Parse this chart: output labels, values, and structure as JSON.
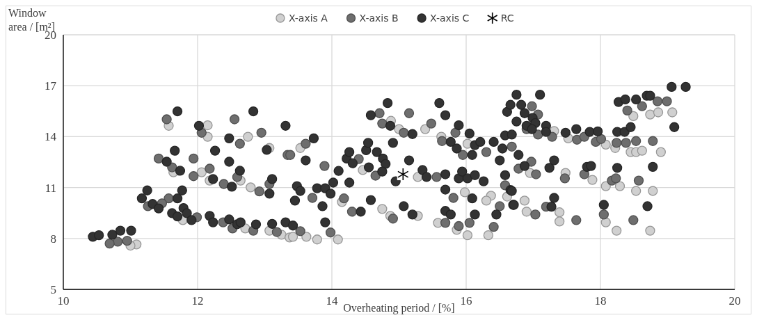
{
  "chart_data": {
    "type": "scatter",
    "xlabel": "Overheating period / [%]",
    "ylabel": "Window area / [m²]",
    "xlim": [
      10,
      20
    ],
    "xticks": [
      10,
      12,
      14,
      16,
      18,
      20
    ],
    "ylim": [
      5,
      20
    ],
    "yticks": [
      5,
      8,
      11,
      14,
      17,
      20
    ],
    "grid": true,
    "legend": "top",
    "marker": "circle",
    "series": [
      {
        "name": "X-axis A",
        "color": "#d0d0d0",
        "x": [
          11.57,
          12.15,
          12.15,
          11.64,
          12.06,
          12.18,
          12.75,
          12.64,
          12.79,
          13.07,
          11.09,
          11.0,
          12.71,
          13.07,
          13.25,
          13.37,
          11.78,
          13.53,
          14.09,
          13.78,
          13.62,
          13.42,
          14.75,
          14.87,
          15.28,
          14.88,
          15.0,
          15.39,
          15.63,
          14.46,
          15.28,
          15.58,
          15.86,
          16.02,
          16.33,
          16.37,
          16.3,
          16.61,
          14.15,
          16.02,
          15.98,
          17.52,
          18.08,
          18.22,
          18.45,
          18.53,
          18.62,
          18.9,
          18.74,
          18.86,
          19.07,
          18.49,
          17.48,
          16.95,
          17.88,
          18.08,
          18.29,
          18.53,
          18.78,
          16.87,
          16.9,
          17.39,
          17.39,
          18.08,
          18.24,
          18.74,
          17.31
        ],
        "values": [
          14.64,
          14.67,
          13.99,
          11.9,
          11.9,
          11.41,
          13.99,
          11.41,
          11.01,
          13.33,
          7.65,
          7.58,
          8.59,
          8.46,
          8.22,
          8.06,
          9.08,
          13.33,
          7.94,
          7.94,
          8.1,
          8.1,
          9.74,
          9.33,
          9.33,
          14.93,
          14.44,
          14.44,
          13.99,
          12.03,
          11.62,
          8.92,
          8.51,
          8.19,
          8.19,
          10.52,
          10.23,
          10.47,
          10.15,
          13.58,
          10.72,
          13.9,
          13.53,
          13.33,
          13.09,
          13.09,
          13.17,
          13.09,
          15.3,
          15.43,
          15.43,
          15.21,
          11.86,
          11.86,
          11.45,
          11.08,
          11.08,
          10.8,
          10.8,
          10.23,
          9.58,
          9.54,
          9.0,
          8.95,
          8.46,
          8.46,
          14.33
        ]
      },
      {
        "name": "X-axis B",
        "color": "#6e6e6e",
        "x": [
          11.54,
          11.42,
          11.62,
          11.57,
          11.94,
          11.94,
          12.06,
          12.18,
          12.39,
          12.55,
          12.63,
          12.59,
          12.92,
          12.95,
          13.07,
          13.34,
          11.99,
          10.81,
          10.69,
          10.95,
          12.38,
          12.52,
          12.83,
          13.18,
          11.47,
          11.26,
          13.38,
          13.61,
          13.89,
          13.71,
          14.18,
          14.3,
          13.98,
          13.53,
          14.71,
          14.75,
          15.07,
          15.15,
          15.48,
          15.64,
          14.65,
          14.91,
          14.4,
          15.56,
          15.81,
          15.69,
          15.89,
          16.05,
          16.41,
          16.5,
          16.58,
          16.3,
          15.95,
          15.84,
          16.98,
          17.07,
          16.9,
          17.07,
          17.28,
          17.65,
          17.76,
          17.93,
          18.01,
          18.24,
          18.38,
          18.53,
          18.78,
          18.4,
          18.62,
          18.85,
          18.99,
          16.97,
          17.04,
          16.78,
          17.47,
          17.76,
          18.17,
          18.23,
          18.57,
          17.19,
          17.03,
          17.64,
          18.05,
          18.49,
          16.68
        ],
        "values": [
          15.02,
          12.71,
          12.19,
          10.36,
          12.71,
          11.67,
          14.23,
          12.11,
          11.21,
          15.02,
          13.58,
          11.62,
          10.77,
          14.23,
          11.21,
          12.92,
          9.25,
          7.81,
          7.7,
          7.86,
          8.95,
          8.59,
          8.46,
          8.38,
          10.07,
          9.9,
          12.92,
          13.58,
          12.27,
          10.39,
          10.36,
          9.58,
          8.35,
          8.43,
          15.38,
          14.77,
          14.23,
          15.38,
          14.77,
          13.74,
          11.7,
          9.17,
          12.68,
          11.62,
          10.39,
          8.92,
          8.73,
          8.92,
          8.68,
          9.9,
          11.13,
          13.09,
          12.92,
          14.23,
          15.79,
          15.3,
          14.44,
          14.12,
          13.99,
          13.82,
          13.99,
          13.69,
          13.86,
          13.63,
          13.63,
          13.74,
          13.74,
          15.54,
          15.79,
          16.08,
          16.08,
          12.52,
          11.78,
          12.11,
          11.54,
          11.78,
          11.41,
          11.54,
          11.41,
          9.87,
          9.41,
          9.08,
          9.41,
          9.08,
          13.41
        ]
      },
      {
        "name": "X-axis C",
        "color": "#333333",
        "x": [
          10.44,
          10.53,
          10.73,
          10.85,
          11.01,
          11.17,
          11.25,
          11.33,
          11.42,
          11.62,
          11.7,
          11.7,
          11.77,
          11.79,
          11.84,
          11.91,
          11.54,
          11.66,
          11.74,
          11.7,
          12.02,
          12.18,
          12.23,
          12.23,
          12.26,
          12.47,
          12.47,
          12.51,
          12.63,
          12.47,
          12.59,
          12.64,
          12.83,
          12.87,
          13.03,
          13.11,
          13.07,
          13.11,
          13.31,
          13.31,
          13.73,
          13.61,
          13.48,
          13.45,
          13.53,
          13.78,
          13.86,
          13.9,
          13.98,
          14.02,
          14.1,
          14.26,
          14.22,
          14.26,
          14.31,
          13.9,
          13.42,
          14.43,
          14.55,
          14.51,
          14.54,
          14.58,
          14.58,
          14.67,
          14.76,
          14.83,
          14.87,
          14.91,
          14.8,
          14.75,
          14.95,
          15.07,
          15.2,
          15.15,
          15.2,
          15.35,
          15.41,
          15.6,
          15.69,
          15.69,
          15.69,
          15.69,
          15.77,
          15.77,
          15.86,
          15.89,
          15.89,
          15.94,
          16.02,
          16.05,
          16.09,
          16.13,
          16.13,
          16.26,
          16.09,
          16.13,
          16.21,
          16.41,
          16.45,
          16.5,
          16.58,
          16.58,
          16.66,
          16.7,
          16.54,
          16.61,
          16.66,
          16.75,
          17.1,
          16.82,
          16.87,
          16.75,
          16.9,
          16.99,
          17.03,
          16.98,
          17.19,
          17.19,
          16.68,
          17.48,
          17.64,
          17.84,
          17.96,
          18.25,
          18.36,
          18.45,
          18.27,
          18.37,
          18.53,
          18.69,
          18.74,
          19.06,
          19.27,
          19.1,
          16.78,
          16.87,
          17.24,
          17.31,
          17.8,
          17.86,
          18.25,
          18.78,
          16.68,
          16.71,
          17.31,
          17.27,
          18.05,
          18.7
        ],
        "values": [
          8.1,
          8.19,
          8.22,
          8.46,
          8.46,
          10.36,
          10.83,
          10.03,
          9.77,
          9.49,
          9.3,
          10.36,
          10.83,
          9.79,
          9.49,
          9.08,
          12.52,
          13.17,
          11.99,
          15.49,
          14.64,
          9.33,
          8.95,
          11.5,
          13.17,
          13.9,
          12.52,
          11.05,
          11.99,
          9.12,
          8.84,
          8.95,
          15.49,
          8.83,
          13.22,
          11.5,
          10.64,
          8.86,
          14.64,
          8.95,
          13.9,
          12.6,
          11.08,
          10.23,
          10.8,
          10.96,
          9.9,
          10.96,
          10.64,
          11.29,
          11.98,
          11.29,
          12.71,
          13.09,
          12.43,
          8.95,
          8.76,
          9.58,
          12.19,
          13.2,
          13.63,
          15.26,
          10.26,
          13.09,
          12.71,
          15.98,
          14.64,
          13.63,
          12.39,
          11.94,
          11.37,
          9.9,
          9.41,
          12.6,
          14.15,
          12.03,
          11.62,
          15.98,
          15.26,
          11.78,
          10.88,
          9.62,
          9.41,
          13.69,
          13.3,
          14.67,
          11.54,
          11.94,
          11.54,
          14.18,
          12.92,
          13.5,
          11.73,
          11.37,
          10.36,
          9.41,
          13.69,
          13.69,
          9.41,
          12.6,
          11.73,
          14.07,
          10.85,
          9.98,
          13.3,
          15.46,
          15.87,
          16.47,
          16.47,
          15.87,
          15.38,
          14.89,
          14.64,
          15.1,
          14.8,
          14.44,
          14.64,
          14.28,
          14.12,
          14.23,
          14.44,
          14.28,
          14.31,
          14.28,
          14.28,
          14.56,
          16.04,
          16.19,
          16.19,
          16.41,
          16.41,
          16.93,
          16.93,
          14.56,
          12.92,
          12.27,
          12.16,
          12.6,
          12.22,
          12.27,
          12.16,
          12.22,
          10.8,
          9.98,
          10.39,
          9.87,
          9.98,
          9.9
        ]
      },
      {
        "name": "RC",
        "color": "#000000",
        "marker": "cross",
        "x": [
          15.06
        ],
        "values": [
          11.78
        ]
      }
    ]
  }
}
